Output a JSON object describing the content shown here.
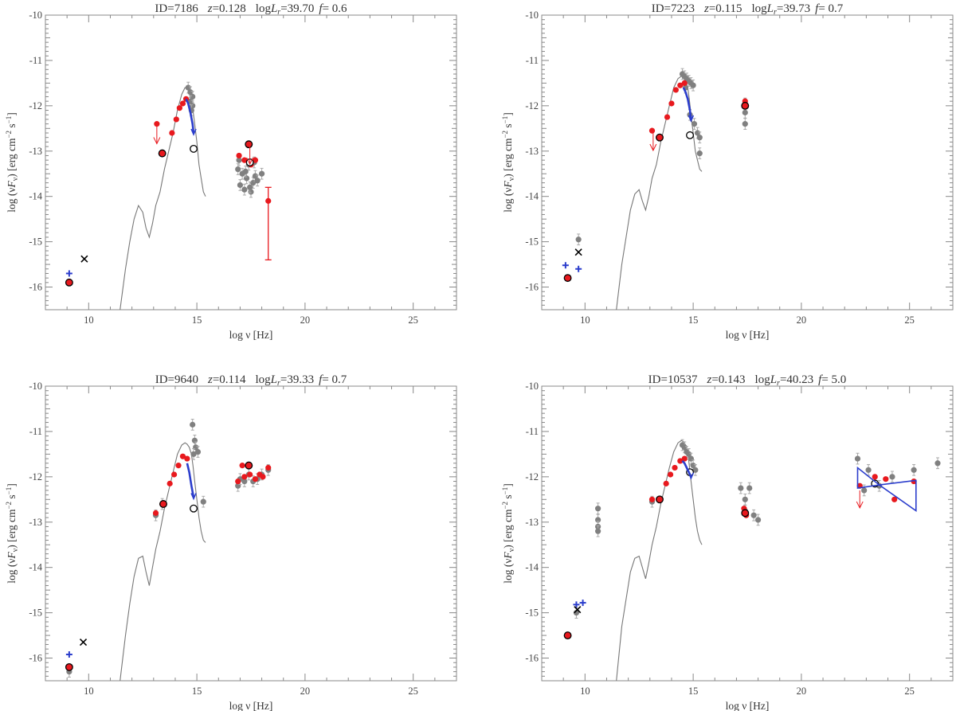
{
  "chart_data": [
    {
      "type": "scatter",
      "title": "ID=7186   z=0.128   logL_r=39.70  f=  0.6",
      "title_parts": [
        "ID=7186",
        "z",
        "=0.128",
        "log",
        "L",
        "r",
        "=39.70",
        "f",
        "=  0.6"
      ],
      "xlabel": "log ν [Hz]",
      "ylabel": "log (νF_ν) [erg cm^-2 s^-1]",
      "xlim": [
        8,
        27
      ],
      "ylim": [
        -16.5,
        -10
      ],
      "xticks": [
        10,
        15,
        20,
        25
      ],
      "yticks": [
        -16,
        -15,
        -14,
        -13,
        -12,
        -11,
        -10
      ],
      "series": [
        {
          "name": "host galaxy template",
          "kind": "line",
          "color": "#777777",
          "x": [
            11.45,
            11.7,
            11.9,
            12.1,
            12.3,
            12.5,
            12.65,
            12.8,
            12.95,
            13.1,
            13.3,
            13.5,
            13.7,
            13.9,
            14.1,
            14.3,
            14.45,
            14.55,
            14.65,
            14.75,
            14.82,
            14.9,
            15.0,
            15.1,
            15.2,
            15.3,
            15.4
          ],
          "y": [
            -16.5,
            -15.6,
            -15.0,
            -14.5,
            -14.2,
            -14.35,
            -14.7,
            -14.9,
            -14.6,
            -14.2,
            -13.9,
            -13.4,
            -13.0,
            -12.6,
            -12.1,
            -11.75,
            -11.6,
            -11.62,
            -11.7,
            -11.85,
            -12.1,
            -12.4,
            -12.8,
            -13.3,
            -13.6,
            -13.9,
            -14.0
          ]
        },
        {
          "name": "archival",
          "kind": "points",
          "color": "#808080",
          "err": 0.12,
          "x": [
            14.6,
            14.7,
            14.8,
            14.7,
            14.8,
            14.75,
            16.9,
            17.0,
            17.1,
            17.2,
            17.3,
            17.4,
            17.5,
            17.6,
            17.7,
            17.8,
            18.0,
            16.95,
            17.25,
            17.45,
            17.65
          ],
          "y": [
            -11.6,
            -11.7,
            -11.8,
            -11.9,
            -12.0,
            -12.1,
            -13.4,
            -13.75,
            -13.5,
            -13.85,
            -13.6,
            -13.3,
            -13.9,
            -13.7,
            -13.55,
            -13.65,
            -13.5,
            -13.2,
            -13.45,
            -13.8,
            -13.25
          ]
        },
        {
          "name": "SED points",
          "kind": "points",
          "color": "#e8191e",
          "x": [
            13.15,
            13.4,
            13.85,
            14.05,
            14.2,
            14.35,
            14.5,
            16.95,
            17.2,
            17.5,
            17.7
          ],
          "y": [
            -12.4,
            -13.05,
            -12.6,
            -12.3,
            -12.05,
            -11.95,
            -11.85,
            -13.1,
            -13.2,
            -13.3,
            -13.2
          ]
        },
        {
          "name": "circled points",
          "kind": "circled",
          "color": "#e8191e",
          "x": [
            9.1,
            13.4,
            17.4
          ],
          "y": [
            -15.9,
            -13.05,
            -12.85
          ]
        },
        {
          "name": "open circles",
          "kind": "open",
          "x": [
            14.85,
            17.45
          ],
          "y": [
            -12.95,
            -13.25
          ]
        },
        {
          "name": "upper limits",
          "kind": "arrows",
          "color": "#e8191e",
          "x": [
            13.15,
            17.45
          ],
          "y": [
            -12.45,
            -12.9
          ]
        },
        {
          "name": "radio",
          "kind": "plus",
          "color": "#2b3dcc",
          "x": [
            9.1
          ],
          "y": [
            -15.7
          ]
        },
        {
          "name": "x",
          "kind": "cross",
          "x": [
            9.8
          ],
          "y": [
            -15.38
          ]
        },
        {
          "name": "optical spectrum",
          "kind": "curve",
          "color": "#2b3dcc",
          "x": [
            14.5,
            14.6,
            14.7,
            14.8,
            14.85
          ],
          "y": [
            -11.85,
            -11.95,
            -12.15,
            -12.4,
            -12.6
          ]
        },
        {
          "name": "hard x-ray",
          "kind": "errorbar",
          "color": "#e8191e",
          "x": [
            18.3
          ],
          "y": [
            -14.1
          ],
          "ylo": -15.4,
          "yhi": -13.8
        }
      ]
    },
    {
      "type": "scatter",
      "title": "ID=7223   z=0.115   logL_r=39.73  f=  0.7",
      "title_parts": [
        "ID=7223",
        "z",
        "=0.115",
        "log",
        "L",
        "r",
        "=39.73",
        "f",
        "=  0.7"
      ],
      "xlabel": "log ν [Hz]",
      "ylabel": "log (νF_ν) [erg cm^-2 s^-1]",
      "xlim": [
        8,
        27
      ],
      "ylim": [
        -16.5,
        -10
      ],
      "xticks": [
        10,
        15,
        20,
        25
      ],
      "yticks": [
        -16,
        -15,
        -14,
        -13,
        -12,
        -11,
        -10
      ],
      "series": [
        {
          "name": "host galaxy template",
          "kind": "line",
          "color": "#777777",
          "x": [
            11.45,
            11.7,
            11.9,
            12.1,
            12.3,
            12.5,
            12.65,
            12.8,
            12.95,
            13.1,
            13.3,
            13.5,
            13.7,
            13.9,
            14.1,
            14.3,
            14.45,
            14.55,
            14.65,
            14.75,
            14.82,
            14.9,
            15.0,
            15.1,
            15.2,
            15.3,
            15.4
          ],
          "y": [
            -16.5,
            -15.5,
            -14.9,
            -14.3,
            -13.95,
            -13.85,
            -14.1,
            -14.3,
            -14.0,
            -13.6,
            -13.3,
            -12.8,
            -12.4,
            -12.0,
            -11.6,
            -11.4,
            -11.35,
            -11.38,
            -11.45,
            -11.6,
            -11.85,
            -12.2,
            -12.6,
            -13.0,
            -13.2,
            -13.4,
            -13.45
          ]
        },
        {
          "name": "archival",
          "kind": "points",
          "color": "#808080",
          "err": 0.12,
          "x": [
            14.5,
            14.6,
            14.7,
            14.8,
            14.9,
            15.0,
            14.65,
            14.85,
            15.05,
            15.2,
            15.3,
            9.7,
            17.4,
            17.4,
            17.4,
            15.3
          ],
          "y": [
            -11.3,
            -11.35,
            -11.4,
            -11.45,
            -11.5,
            -11.55,
            -11.6,
            -12.2,
            -12.4,
            -12.6,
            -12.7,
            -14.95,
            -12.15,
            -12.4,
            -11.95,
            -13.05
          ]
        },
        {
          "name": "SED points",
          "kind": "points",
          "color": "#e8191e",
          "x": [
            13.1,
            13.4,
            13.8,
            14.0,
            14.2,
            14.4,
            14.6,
            17.4
          ],
          "y": [
            -12.55,
            -12.7,
            -12.25,
            -11.95,
            -11.65,
            -11.55,
            -11.5,
            -11.9
          ]
        },
        {
          "name": "circled points",
          "kind": "circled",
          "color": "#e8191e",
          "x": [
            9.2,
            13.45,
            17.4
          ],
          "y": [
            -15.8,
            -12.7,
            -12.0
          ]
        },
        {
          "name": "open circles",
          "kind": "open",
          "x": [
            14.85
          ],
          "y": [
            -12.65
          ]
        },
        {
          "name": "upper limits",
          "kind": "arrows",
          "color": "#e8191e",
          "x": [
            13.15
          ],
          "y": [
            -12.6
          ]
        },
        {
          "name": "radio",
          "kind": "plus",
          "color": "#2b3dcc",
          "x": [
            9.1,
            9.7
          ],
          "y": [
            -15.52,
            -15.6
          ]
        },
        {
          "name": "x",
          "kind": "cross",
          "x": [
            9.7
          ],
          "y": [
            -15.23
          ]
        },
        {
          "name": "optical spectrum",
          "kind": "curve",
          "color": "#2b3dcc",
          "x": [
            14.55,
            14.65,
            14.75,
            14.85,
            14.9
          ],
          "y": [
            -11.6,
            -11.7,
            -11.85,
            -12.1,
            -12.3
          ]
        }
      ]
    },
    {
      "type": "scatter",
      "title": "ID=9640   z=0.114   logL_r=39.33  f=  0.7",
      "title_parts": [
        "ID=9640",
        "z",
        "=0.114",
        "log",
        "L",
        "r",
        "=39.33",
        "f",
        "=  0.7"
      ],
      "xlabel": "log ν [Hz]",
      "ylabel": "log (νF_ν) [erg cm^-2 s^-1]",
      "xlim": [
        8,
        27
      ],
      "ylim": [
        -16.5,
        -10
      ],
      "xticks": [
        10,
        15,
        20,
        25
      ],
      "yticks": [
        -16,
        -15,
        -14,
        -13,
        -12,
        -11,
        -10
      ],
      "series": [
        {
          "name": "host galaxy template",
          "kind": "line",
          "color": "#777777",
          "x": [
            11.45,
            11.7,
            11.9,
            12.1,
            12.3,
            12.5,
            12.65,
            12.8,
            12.95,
            13.1,
            13.3,
            13.5,
            13.7,
            13.9,
            14.1,
            14.3,
            14.45,
            14.55,
            14.65,
            14.75,
            14.82,
            14.9,
            15.0,
            15.1,
            15.2,
            15.3,
            15.4
          ],
          "y": [
            -16.5,
            -15.5,
            -14.8,
            -14.2,
            -13.8,
            -13.75,
            -14.1,
            -14.4,
            -14.0,
            -13.6,
            -13.2,
            -12.7,
            -12.3,
            -11.9,
            -11.5,
            -11.3,
            -11.25,
            -11.28,
            -11.35,
            -11.5,
            -11.75,
            -12.1,
            -12.5,
            -12.9,
            -13.2,
            -13.4,
            -13.45
          ]
        },
        {
          "name": "archival",
          "kind": "points",
          "color": "#808080",
          "err": 0.12,
          "x": [
            14.8,
            14.9,
            14.95,
            14.85,
            15.05,
            15.3,
            16.9,
            17.0,
            17.2,
            17.4,
            17.6,
            17.8,
            18.0,
            18.3,
            9.1,
            13.4,
            13.1
          ],
          "y": [
            -10.85,
            -11.2,
            -11.35,
            -11.5,
            -11.45,
            -12.55,
            -12.2,
            -12.05,
            -12.1,
            -11.95,
            -12.1,
            -12.05,
            -11.95,
            -11.85,
            -16.3,
            -12.6,
            -12.85
          ]
        },
        {
          "name": "SED points",
          "kind": "points",
          "color": "#e8191e",
          "x": [
            13.1,
            13.4,
            13.75,
            13.95,
            14.15,
            14.35,
            14.55,
            16.9,
            17.2,
            17.45,
            17.7,
            17.9,
            18.05,
            18.3,
            17.1
          ],
          "y": [
            -12.8,
            -12.6,
            -12.15,
            -11.95,
            -11.75,
            -11.55,
            -11.6,
            -12.1,
            -12.0,
            -11.95,
            -12.05,
            -11.95,
            -12.0,
            -11.8,
            -11.75
          ]
        },
        {
          "name": "circled points",
          "kind": "circled",
          "color": "#e8191e",
          "x": [
            9.1,
            13.45,
            17.4
          ],
          "y": [
            -16.2,
            -12.6,
            -11.75
          ]
        },
        {
          "name": "open circles",
          "kind": "open",
          "x": [
            14.85
          ],
          "y": [
            -12.7
          ]
        },
        {
          "name": "upper limits",
          "kind": "arrows",
          "color": "#e8191e",
          "x": [],
          "y": []
        },
        {
          "name": "radio",
          "kind": "plus",
          "color": "#2b3dcc",
          "x": [
            9.1
          ],
          "y": [
            -15.92
          ]
        },
        {
          "name": "x",
          "kind": "cross",
          "x": [
            9.75
          ],
          "y": [
            -15.65
          ]
        },
        {
          "name": "optical spectrum",
          "kind": "curve",
          "color": "#2b3dcc",
          "x": [
            14.55,
            14.65,
            14.75,
            14.85
          ],
          "y": [
            -11.7,
            -11.9,
            -12.2,
            -12.45
          ]
        }
      ]
    },
    {
      "type": "scatter",
      "title": "ID=10537   z=0.143   logL_r=40.23  f=  5.0",
      "title_parts": [
        "ID=10537",
        "z",
        "=0.143",
        "log",
        "L",
        "r",
        "=40.23",
        "f",
        "=  5.0"
      ],
      "xlabel": "log ν [Hz]",
      "ylabel": "log (νF_ν) [erg cm^-2 s^-1]",
      "xlim": [
        8,
        27
      ],
      "ylim": [
        -16.5,
        -10
      ],
      "xticks": [
        10,
        15,
        20,
        25
      ],
      "yticks": [
        -16,
        -15,
        -14,
        -13,
        -12,
        -11,
        -10
      ],
      "series": [
        {
          "name": "host galaxy template",
          "kind": "line",
          "color": "#777777",
          "x": [
            11.45,
            11.7,
            11.9,
            12.1,
            12.3,
            12.5,
            12.65,
            12.8,
            12.95,
            13.1,
            13.3,
            13.5,
            13.7,
            13.9,
            14.1,
            14.3,
            14.45,
            14.55,
            14.65,
            14.75,
            14.82,
            14.9,
            15.0,
            15.1,
            15.2,
            15.3,
            15.4
          ],
          "y": [
            -16.5,
            -15.3,
            -14.7,
            -14.1,
            -13.8,
            -13.75,
            -14.0,
            -14.25,
            -13.9,
            -13.5,
            -13.1,
            -12.6,
            -12.2,
            -11.8,
            -11.45,
            -11.25,
            -11.2,
            -11.22,
            -11.3,
            -11.45,
            -11.75,
            -12.1,
            -12.5,
            -12.9,
            -13.2,
            -13.4,
            -13.5
          ]
        },
        {
          "name": "archival",
          "kind": "points",
          "color": "#808080",
          "err": 0.12,
          "x": [
            14.5,
            14.6,
            14.7,
            14.8,
            14.9,
            15.0,
            15.1,
            10.6,
            10.6,
            10.6,
            10.6,
            17.2,
            17.4,
            17.4,
            17.6,
            17.8,
            18.0,
            9.6,
            13.1,
            22.6,
            23.1,
            24.2,
            25.2,
            26.3,
            23.6,
            22.9
          ],
          "y": [
            -11.3,
            -11.35,
            -11.45,
            -11.5,
            -11.6,
            -11.75,
            -11.85,
            -12.7,
            -12.95,
            -13.1,
            -13.2,
            -12.25,
            -12.5,
            -12.75,
            -12.25,
            -12.85,
            -12.95,
            -15.0,
            -12.55,
            -11.6,
            -11.85,
            -12.0,
            -11.85,
            -11.7,
            -12.2,
            -12.3
          ]
        },
        {
          "name": "SED points",
          "kind": "points",
          "color": "#e8191e",
          "x": [
            13.1,
            13.4,
            13.75,
            13.95,
            14.15,
            14.4,
            14.6,
            17.35,
            17.45,
            22.7,
            23.4,
            23.9,
            24.3,
            25.2
          ],
          "y": [
            -12.5,
            -12.5,
            -12.15,
            -11.95,
            -11.8,
            -11.65,
            -11.6,
            -12.7,
            -12.85,
            -12.2,
            -12.0,
            -12.05,
            -12.5,
            -12.1
          ]
        },
        {
          "name": "circled points",
          "kind": "circled",
          "color": "#e8191e",
          "x": [
            9.2,
            13.45,
            17.4
          ],
          "y": [
            -15.5,
            -12.5,
            -12.8
          ]
        },
        {
          "name": "open circles",
          "kind": "open",
          "x": [
            14.85,
            23.4
          ],
          "y": [
            -11.9,
            -12.15
          ]
        },
        {
          "name": "upper limits",
          "kind": "arrows",
          "color": "#e8191e",
          "x": [
            22.7
          ],
          "y": [
            -12.3
          ]
        },
        {
          "name": "radio",
          "kind": "plus",
          "color": "#2b3dcc",
          "x": [
            9.6,
            9.9
          ],
          "y": [
            -14.82,
            -14.78
          ]
        },
        {
          "name": "x",
          "kind": "cross",
          "x": [
            9.65
          ],
          "y": [
            -14.93
          ]
        },
        {
          "name": "optical spectrum",
          "kind": "curve",
          "color": "#2b3dcc",
          "x": [
            14.5,
            14.6,
            14.7,
            14.8,
            14.9
          ],
          "y": [
            -11.65,
            -11.7,
            -11.8,
            -11.9,
            -12.0
          ]
        },
        {
          "name": "gamma-ray bowtie",
          "kind": "bowtie",
          "color": "#2b3dcc",
          "x": [
            22.6,
            23.6,
            25.3,
            25.3,
            23.6,
            22.6
          ],
          "y": [
            -11.8,
            -12.18,
            -12.08,
            -12.75,
            -12.18,
            -12.25
          ]
        }
      ]
    }
  ]
}
